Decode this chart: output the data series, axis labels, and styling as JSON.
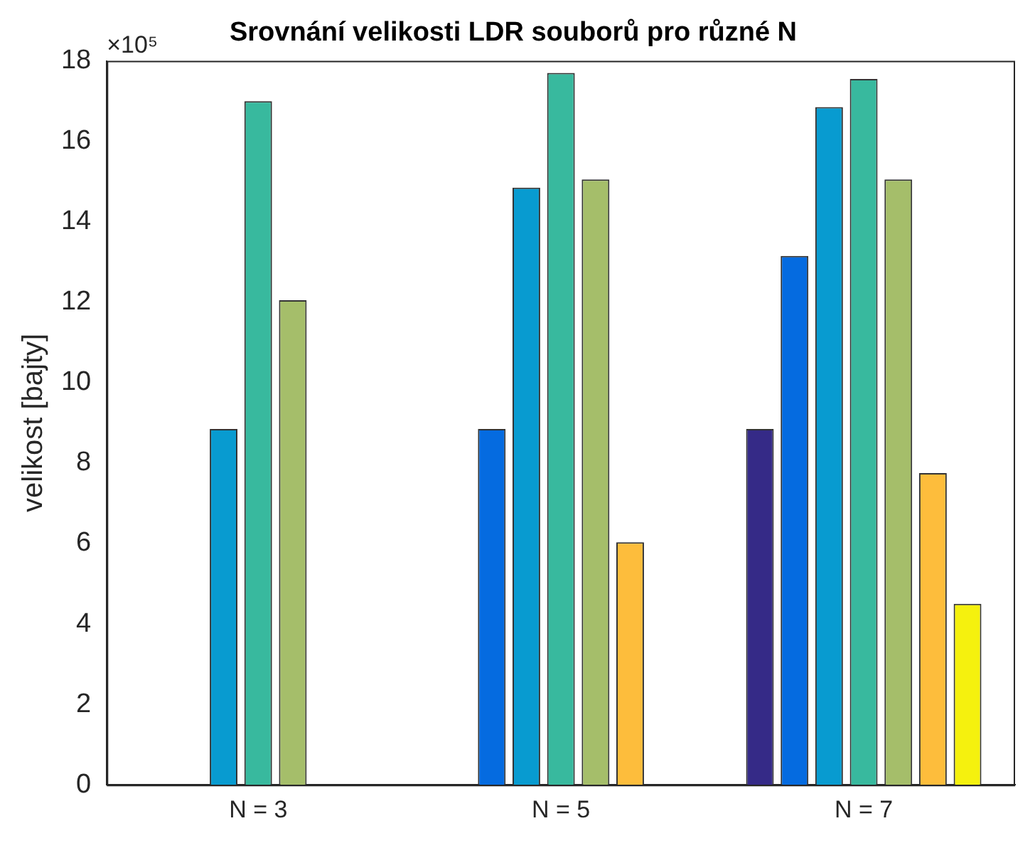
{
  "chart_data": {
    "type": "bar",
    "title": "Srovnání velikosti LDR souborů pro různé N",
    "ylabel": "velikost [bajty]",
    "categories": [
      "N = 3",
      "N = 5",
      "N = 7"
    ],
    "series": [
      {
        "color": "#352a87",
        "values": [
          null,
          null,
          8.85
        ]
      },
      {
        "color": "#056be0",
        "values": [
          null,
          8.85,
          13.15
        ]
      },
      {
        "color": "#089bd0",
        "values": [
          8.85,
          14.85,
          16.85
        ]
      },
      {
        "color": "#38b99e",
        "values": [
          17.0,
          17.7,
          17.55
        ]
      },
      {
        "color": "#a5be6a",
        "values": [
          12.05,
          15.05,
          15.05
        ]
      },
      {
        "color": "#fdbd3c",
        "values": [
          null,
          6.03,
          7.75
        ]
      },
      {
        "color": "#f5f10e",
        "values": [
          null,
          null,
          4.5
        ]
      }
    ],
    "ylim": [
      0,
      18
    ],
    "yticks": [
      0,
      2,
      4,
      6,
      8,
      10,
      12,
      14,
      16,
      18
    ],
    "grid": false,
    "legend": false,
    "annotations": [
      "×10⁵"
    ]
  }
}
